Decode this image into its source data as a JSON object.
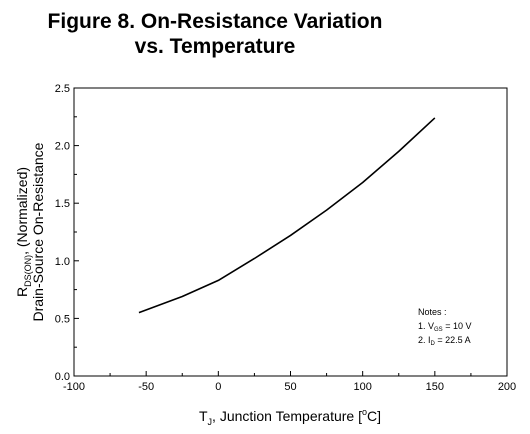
{
  "chart_data": {
    "type": "line",
    "title_line1": "Figure 8. On-Resistance Variation",
    "title_line2": "vs. Temperature",
    "xlabel": {
      "prefix": "T",
      "sub": "J",
      "mid": ", Junction Temperature [",
      "sup": "o",
      "suffix": "C]"
    },
    "ylabel": {
      "line1": {
        "prefix": "R",
        "sub": "DS(ON)",
        "suffix": ", (Normalized)"
      },
      "line2": "Drain-Source On-Resistance"
    },
    "xlim": [
      -100,
      200
    ],
    "ylim": [
      0.0,
      2.5
    ],
    "xticks": [
      "-100",
      "-50",
      "0",
      "50",
      "100",
      "150",
      "200"
    ],
    "yticks": [
      "0.0",
      "0.5",
      "1.0",
      "1.5",
      "2.0",
      "2.5"
    ],
    "grid": false,
    "series": [
      {
        "x": [
          -55,
          -25,
          0,
          25,
          50,
          75,
          100,
          125,
          150
        ],
        "y": [
          0.55,
          0.69,
          0.83,
          1.02,
          1.22,
          1.44,
          1.68,
          1.95,
          2.24
        ]
      }
    ],
    "notes": {
      "heading": "Notes :",
      "note1": {
        "prefix": "1. V",
        "sub": "GS",
        "suffix": " = 10 V"
      },
      "note2": {
        "prefix": "2. I",
        "sub": "D",
        "suffix": " = 22.5 A"
      }
    }
  }
}
